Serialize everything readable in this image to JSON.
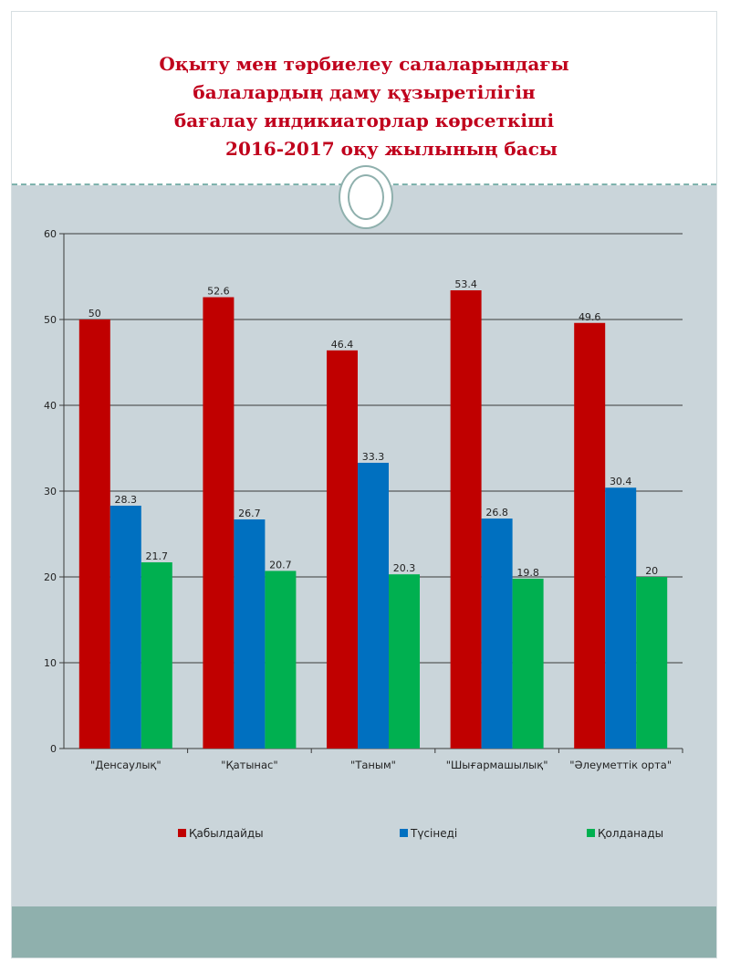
{
  "title_lines": [
    "Оқыту мен тәрбиелеу салаларындағы",
    "балалардың даму құзыретілігін",
    "бағалау индикиаторлар көрсеткіші",
    "2016-2017  оқу  жылының басы"
  ],
  "chart_data": {
    "type": "bar",
    "categories": [
      "\"Денсаулық\"",
      "\"Қатынас\"",
      "\"Таным\"",
      "\"Шығармашылық\"",
      "\"Әлеуметтік орта\""
    ],
    "series": [
      {
        "name": "Қабылдайды",
        "color": "#c00000",
        "values": [
          50,
          52.6,
          46.4,
          53.4,
          49.6
        ],
        "labels": [
          "50",
          "52.6",
          "46.4",
          "53.4",
          "49.6"
        ]
      },
      {
        "name": "Түсінеді",
        "color": "#0070c0",
        "values": [
          28.3,
          26.7,
          33.3,
          26.8,
          30.4
        ],
        "labels": [
          "28.3",
          "26.7",
          "33.3",
          "26.8",
          "30.4"
        ]
      },
      {
        "name": "Қолданады",
        "color": "#00b050",
        "values": [
          21.7,
          20.7,
          20.3,
          19.8,
          20
        ],
        "labels": [
          "21.7",
          "20.7",
          "20.3",
          "19.8",
          "20"
        ]
      }
    ],
    "y_ticks": [
      "0",
      "10",
      "20",
      "30",
      "40",
      "50",
      "60"
    ],
    "ylim": [
      0,
      60
    ],
    "grid": true,
    "legend": "bottom",
    "title": "",
    "xlabel": "",
    "ylabel": ""
  }
}
